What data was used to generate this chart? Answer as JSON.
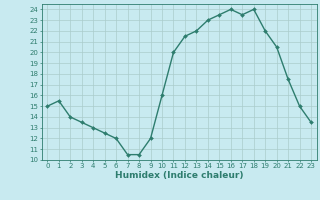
{
  "x": [
    0,
    1,
    2,
    3,
    4,
    5,
    6,
    7,
    8,
    9,
    10,
    11,
    12,
    13,
    14,
    15,
    16,
    17,
    18,
    19,
    20,
    21,
    22,
    23
  ],
  "y": [
    15,
    15.5,
    14,
    13.5,
    13,
    12.5,
    12,
    10.5,
    10.5,
    12,
    16,
    20,
    21.5,
    22,
    23,
    23.5,
    24,
    23.5,
    24,
    22,
    20.5,
    17.5,
    15,
    13.5
  ],
  "line_color": "#2e7d6e",
  "marker": "d",
  "marker_size": 2,
  "bg_color": "#c8eaf0",
  "grid_color": "#aacccc",
  "xlabel": "Humidex (Indice chaleur)",
  "xlim": [
    -0.5,
    23.5
  ],
  "ylim": [
    10,
    24.5
  ],
  "xticks": [
    0,
    1,
    2,
    3,
    4,
    5,
    6,
    7,
    8,
    9,
    10,
    11,
    12,
    13,
    14,
    15,
    16,
    17,
    18,
    19,
    20,
    21,
    22,
    23
  ],
  "yticks": [
    10,
    11,
    12,
    13,
    14,
    15,
    16,
    17,
    18,
    19,
    20,
    21,
    22,
    23,
    24
  ],
  "tick_fontsize": 5,
  "label_fontsize": 6.5,
  "line_width": 1.0
}
